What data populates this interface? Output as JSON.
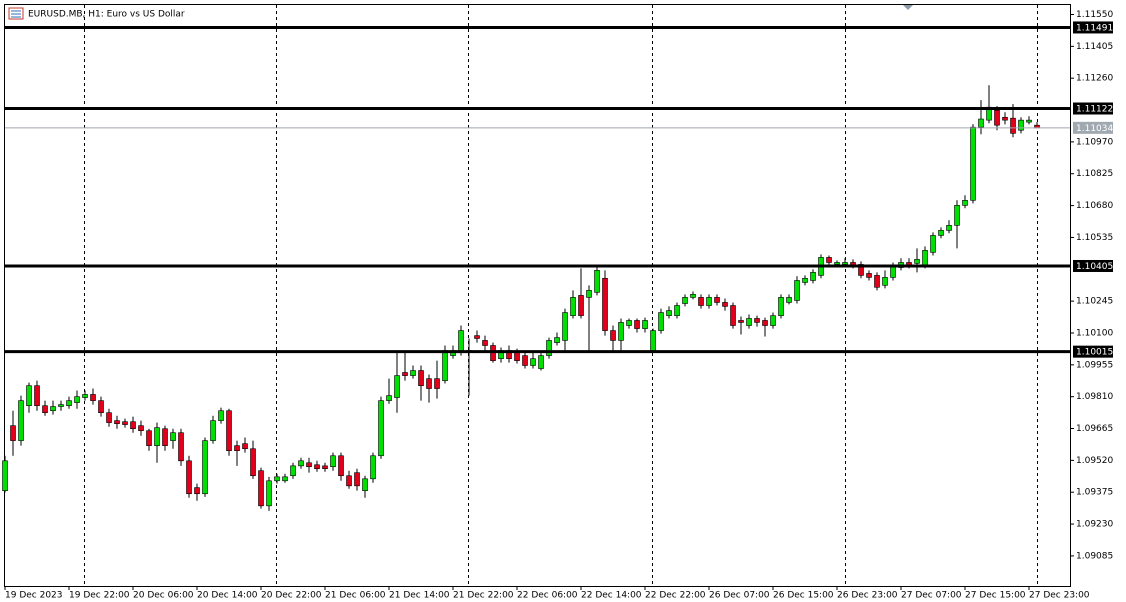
{
  "chart_data": {
    "type": "candlestick",
    "title": "EURUSD.MB, H1:  Euro vs US Dollar",
    "up_color": "#00e000",
    "down_color": "#e0001a",
    "ylim": [
      1.08948,
      1.11616
    ],
    "yticks": [
      {
        "value": 1.1155,
        "label": "1.11550"
      },
      {
        "value": 1.11405,
        "label": "1.11405"
      },
      {
        "value": 1.1126,
        "label": "1.11260"
      },
      {
        "value": 1.1097,
        "label": "1.10970"
      },
      {
        "value": 1.10825,
        "label": "1.10825"
      },
      {
        "value": 1.1068,
        "label": "1.10680"
      },
      {
        "value": 1.10535,
        "label": "1.10535"
      },
      {
        "value": 1.10245,
        "label": "1.10245"
      },
      {
        "value": 1.101,
        "label": "1.10100"
      },
      {
        "value": 1.09955,
        "label": "1.09955"
      },
      {
        "value": 1.0981,
        "label": "1.09810"
      },
      {
        "value": 1.09665,
        "label": "1.09665"
      },
      {
        "value": 1.0952,
        "label": "1.09520"
      },
      {
        "value": 1.09375,
        "label": "1.09375"
      },
      {
        "value": 1.0923,
        "label": "1.09230"
      },
      {
        "value": 1.09085,
        "label": "1.09085"
      }
    ],
    "xticks": [
      {
        "value": 0,
        "label": "19 Dec 2023"
      },
      {
        "value": 8,
        "label": "19 Dec 22:00"
      },
      {
        "value": 16,
        "label": "20 Dec 06:00"
      },
      {
        "value": 24,
        "label": "20 Dec 14:00"
      },
      {
        "value": 32,
        "label": "20 Dec 22:00"
      },
      {
        "value": 40,
        "label": "21 Dec 06:00"
      },
      {
        "value": 48,
        "label": "21 Dec 14:00"
      },
      {
        "value": 56,
        "label": "21 Dec 22:00"
      },
      {
        "value": 64,
        "label": "22 Dec 06:00"
      },
      {
        "value": 72,
        "label": "22 Dec 14:00"
      },
      {
        "value": 80,
        "label": "22 Dec 22:00"
      },
      {
        "value": 88,
        "label": "26 Dec 07:00"
      },
      {
        "value": 96,
        "label": "26 Dec 15:00"
      },
      {
        "value": 104,
        "label": "26 Dec 23:00"
      },
      {
        "value": 112,
        "label": "27 Dec 07:00"
      },
      {
        "value": 120,
        "label": "27 Dec 15:00"
      },
      {
        "value": 128,
        "label": "27 Dec 23:00"
      }
    ],
    "levels": [
      1.11491,
      1.11122,
      1.10405,
      1.10015
    ],
    "bid": 1.11034,
    "open": [
      1.09382,
      1.09678,
      1.0961,
      1.09769,
      1.0986,
      1.09769,
      1.09746,
      1.09765,
      1.09769,
      1.09783,
      1.09806,
      1.0982,
      1.09792,
      1.09737,
      1.09701,
      1.09696,
      1.09696,
      1.09678,
      1.09655,
      1.09587,
      1.09664,
      1.0961,
      1.09646,
      1.09518,
      1.09396,
      1.09368,
      1.0961,
      1.09701,
      1.09746,
      1.09587,
      1.09596,
      1.09573,
      1.09473,
      1.09313,
      1.09427,
      1.09427,
      1.0945,
      1.09495,
      1.09509,
      1.095,
      1.09495,
      1.09491,
      1.09541,
      1.0945,
      1.09464,
      1.09382,
      1.09436,
      1.09541,
      1.09792,
      1.09806,
      1.0992,
      1.09906,
      1.09929,
      1.09892,
      1.09892,
      1.09883,
      1.09997,
      1.1002,
      1.10011,
      1.10088,
      1.10066,
      1.10043,
      1.09983,
      1.1002,
      1.10011,
      1.09997,
      1.09952,
      1.09938,
      1.09997,
      1.10056,
      1.10066,
      1.10179,
      1.10271,
      1.10262,
      1.10285,
      1.10349,
      1.10111,
      1.10066,
      1.10134,
      1.10157,
      1.1012,
      1.1002,
      1.10111,
      1.10179,
      1.10179,
      1.10234,
      1.10262,
      1.10262,
      1.10225,
      1.10262,
      1.10239,
      1.10225,
      1.10157,
      1.10134,
      1.10166,
      1.10157,
      1.10134,
      1.10179,
      1.10239,
      1.10248,
      1.1033,
      1.10339,
      1.10362,
      1.10444,
      1.10412,
      1.10412,
      1.10421,
      1.10412,
      1.10371,
      1.10362,
      1.10317,
      1.10353,
      1.10398,
      1.10421,
      1.10417,
      1.10408,
      1.10467,
      1.10544,
      1.10567,
      1.1059,
      1.10681,
      1.10704,
      1.11037,
      1.11069,
      1.11114,
      1.11082,
      1.11078,
      1.11023,
      1.1106,
      1.11046
    ],
    "high": [
      1.09541,
      1.09746,
      1.09815,
      1.09874,
      1.09883,
      1.09792,
      1.09792,
      1.09792,
      1.0981,
      1.09838,
      1.09838,
      1.09847,
      1.0981,
      1.09755,
      1.09723,
      1.0971,
      1.09719,
      1.09701,
      1.09664,
      1.09692,
      1.09678,
      1.09664,
      1.09664,
      1.09541,
      1.09414,
      1.09624,
      1.09723,
      1.0976,
      1.09755,
      1.0961,
      1.09624,
      1.0961,
      1.09487,
      1.09445,
      1.09459,
      1.09459,
      1.09509,
      1.09532,
      1.09532,
      1.09518,
      1.09509,
      1.09555,
      1.09555,
      1.09473,
      1.09482,
      1.0945,
      1.09555,
      1.0981,
      1.09892,
      1.1002,
      1.1002,
      1.09952,
      1.09952,
      1.09911,
      1.09974,
      1.10043,
      1.10043,
      1.10134,
      1.10075,
      1.10111,
      1.10088,
      1.10056,
      1.10034,
      1.10043,
      1.10029,
      1.1002,
      1.10011,
      1.10011,
      1.10079,
      1.10102,
      1.10211,
      1.10294,
      1.10394,
      1.10317,
      1.10403,
      1.10385,
      1.10134,
      1.10166,
      1.10166,
      1.10166,
      1.1017,
      1.1012,
      1.10211,
      1.10221,
      1.10239,
      1.10276,
      1.10289,
      1.10276,
      1.10276,
      1.10276,
      1.10257,
      1.10239,
      1.10175,
      1.10184,
      1.10179,
      1.1017,
      1.10193,
      1.10276,
      1.10276,
      1.10358,
      1.10362,
      1.1039,
      1.10458,
      1.10453,
      1.1043,
      1.1044,
      1.10435,
      1.10426,
      1.10385,
      1.10376,
      1.10385,
      1.10421,
      1.1044,
      1.1044,
      1.10485,
      1.10494,
      1.10558,
      1.10581,
      1.10613,
      1.10704,
      1.10727,
      1.11051,
      1.1116,
      1.11228,
      1.11133,
      1.11105,
      1.11142,
      1.11082,
      1.11087,
      1.1106
    ],
    "low": [
      1.09373,
      1.09541,
      1.09587,
      1.09737,
      1.09746,
      1.09723,
      1.09728,
      1.09746,
      1.09755,
      1.09755,
      1.09792,
      1.09774,
      1.09719,
      1.09673,
      1.09664,
      1.09669,
      1.09646,
      1.09632,
      1.09564,
      1.09509,
      1.09564,
      1.09573,
      1.09495,
      1.0935,
      1.09336,
      1.09354,
      1.09596,
      1.09687,
      1.09541,
      1.09495,
      1.09555,
      1.09436,
      1.093,
      1.0929,
      1.09414,
      1.09418,
      1.09436,
      1.09482,
      1.09464,
      1.09468,
      1.09468,
      1.09473,
      1.09427,
      1.09391,
      1.09382,
      1.0935,
      1.09418,
      1.09527,
      1.09778,
      1.09737,
      1.09883,
      1.09892,
      1.09792,
      1.09783,
      1.09801,
      1.0987,
      1.09983,
      1.09997,
      1.09815,
      1.10056,
      1.1002,
      1.09965,
      1.09965,
      1.09965,
      1.09961,
      1.09938,
      1.09938,
      1.09929,
      1.09983,
      1.10043,
      1.1002,
      1.10166,
      1.10166,
      1.1002,
      1.10271,
      1.10088,
      1.1002,
      1.10011,
      1.1012,
      1.10102,
      1.10102,
      1.10011,
      1.10097,
      1.10166,
      1.10166,
      1.10221,
      1.10253,
      1.10211,
      1.10211,
      1.10225,
      1.10202,
      1.1012,
      1.10093,
      1.1012,
      1.10129,
      1.10084,
      1.1012,
      1.10166,
      1.1023,
      1.10234,
      1.10317,
      1.10326,
      1.10349,
      1.10408,
      1.10403,
      1.10398,
      1.10394,
      1.10349,
      1.10339,
      1.10294,
      1.10303,
      1.10339,
      1.10385,
      1.10394,
      1.10376,
      1.10394,
      1.10453,
      1.10531,
      1.10554,
      1.10485,
      1.10668,
      1.1069,
      1.11005,
      1.11055,
      1.11023,
      1.1105,
      1.10991,
      1.11009,
      1.1105,
      1.11032
    ],
    "close": [
      1.09518,
      1.0961,
      1.09792,
      1.0986,
      1.09769,
      1.09737,
      1.09765,
      1.09774,
      1.09792,
      1.0981,
      1.0982,
      1.09792,
      1.09737,
      1.09692,
      1.09687,
      1.09683,
      1.09664,
      1.09655,
      1.09587,
      1.09669,
      1.09587,
      1.09646,
      1.09518,
      1.09368,
      1.09368,
      1.0961,
      1.09701,
      1.09746,
      1.09564,
      1.09564,
      1.09573,
      1.0945,
      1.09313,
      1.09427,
      1.09445,
      1.09445,
      1.09495,
      1.09518,
      1.09491,
      1.09482,
      1.09482,
      1.09541,
      1.0945,
      1.09404,
      1.09404,
      1.09436,
      1.09541,
      1.09792,
      1.09815,
      1.09906,
      1.09906,
      1.09929,
      1.0986,
      1.09847,
      1.09847,
      1.1002,
      1.1002,
      1.10111,
      1.1002,
      1.10075,
      1.10043,
      1.09974,
      1.1002,
      1.09983,
      1.09974,
      1.09952,
      1.09983,
      1.09997,
      1.10066,
      1.10079,
      1.10193,
      1.10262,
      1.10179,
      1.10294,
      1.10385,
      1.10111,
      1.10066,
      1.10148,
      1.10157,
      1.1012,
      1.10157,
      1.10111,
      1.10193,
      1.10202,
      1.10225,
      1.10262,
      1.10276,
      1.10225,
      1.10262,
      1.10239,
      1.10221,
      1.10134,
      1.10148,
      1.10166,
      1.10148,
      1.10134,
      1.10179,
      1.10262,
      1.10262,
      1.10339,
      1.10349,
      1.10376,
      1.10444,
      1.10421,
      1.10421,
      1.10421,
      1.10408,
      1.10362,
      1.10353,
      1.10308,
      1.10353,
      1.10408,
      1.10421,
      1.10408,
      1.10435,
      1.10476,
      1.10544,
      1.10567,
      1.1059,
      1.10681,
      1.10704,
      1.11037,
      1.11074,
      1.11128,
      1.11046,
      1.11069,
      1.11009,
      1.11069,
      1.11069,
      1.11034
    ]
  }
}
